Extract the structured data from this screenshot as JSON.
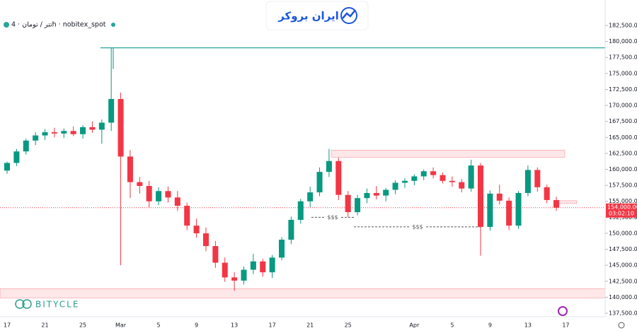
{
  "header": {
    "symbol": "تتر / تومان · 4h · nobitex_spot",
    "brand": "ایران بروکر",
    "watermark": "BITYCLE"
  },
  "chart_data": {
    "type": "candlestick",
    "categories": [
      "17",
      null,
      null,
      null,
      "21",
      null,
      null,
      null,
      "25",
      null,
      null,
      null,
      "Mar",
      null,
      null,
      null,
      "5",
      null,
      null,
      null,
      "9",
      null,
      null,
      null,
      "13",
      null,
      null,
      null,
      "17",
      null,
      null,
      null,
      "21",
      null,
      null,
      null,
      "25",
      null,
      null,
      null,
      null,
      null,
      null,
      "Apr",
      null,
      null,
      null,
      "5",
      null,
      null,
      null,
      "9",
      null,
      null,
      null,
      "13",
      null,
      null,
      null,
      "17"
    ],
    "open": [
      159800,
      161000,
      162800,
      164500,
      165300,
      165800,
      165600,
      166000,
      165500,
      166600,
      166200,
      167300,
      171000,
      162000,
      158000,
      157400,
      155000,
      156600,
      155600,
      154300,
      151200,
      150000,
      148000,
      145400,
      143100,
      142600,
      144300,
      145600,
      143900,
      146200,
      149000,
      152100,
      155000,
      156400,
      159600,
      161300,
      156000,
      153300,
      155500,
      156300,
      155900,
      156800,
      157900,
      158200,
      158900,
      159700,
      159100,
      158200,
      158000,
      157000,
      160600,
      151000,
      156200,
      155100,
      151200,
      156300,
      159900,
      157200,
      155200,
      null
    ],
    "high": [
      161200,
      163200,
      164800,
      165800,
      166300,
      166500,
      166400,
      166700,
      166900,
      167500,
      167800,
      179000,
      172000,
      163000,
      158800,
      158200,
      157200,
      157300,
      156600,
      154800,
      152300,
      150900,
      148800,
      146200,
      143900,
      144800,
      146800,
      146000,
      146600,
      149400,
      152600,
      155400,
      157300,
      160300,
      163200,
      161800,
      156600,
      156000,
      157000,
      157400,
      157100,
      158300,
      158600,
      159200,
      160000,
      160300,
      159500,
      158900,
      158500,
      161500,
      161000,
      156700,
      157600,
      155600,
      156600,
      160600,
      160300,
      157600,
      155700,
      null
    ],
    "low": [
      159300,
      160500,
      162300,
      163800,
      164600,
      165000,
      164900,
      165200,
      164800,
      165700,
      164000,
      166000,
      145000,
      155500,
      156200,
      154000,
      154400,
      154800,
      153500,
      150500,
      149300,
      147200,
      144600,
      142400,
      141000,
      142000,
      143600,
      143200,
      143000,
      145800,
      148300,
      151500,
      154100,
      155800,
      158800,
      155200,
      152500,
      152800,
      154700,
      155300,
      155000,
      156100,
      157100,
      157500,
      158300,
      158600,
      157800,
      157300,
      156400,
      156500,
      146500,
      150400,
      154500,
      150500,
      150700,
      155800,
      156500,
      154700,
      153500,
      null
    ],
    "close": [
      161000,
      162800,
      164500,
      165300,
      165800,
      165600,
      166000,
      165500,
      166600,
      166200,
      167300,
      171000,
      162000,
      158000,
      157400,
      155000,
      156600,
      155600,
      154300,
      151200,
      150000,
      148000,
      145400,
      143100,
      142600,
      144300,
      145600,
      143900,
      146200,
      149000,
      152100,
      155000,
      156400,
      159600,
      161300,
      156000,
      153300,
      155500,
      156300,
      155900,
      156800,
      157900,
      158200,
      158900,
      159700,
      159100,
      158200,
      158000,
      157000,
      160600,
      151000,
      156200,
      155100,
      151200,
      156300,
      159900,
      157200,
      155200,
      154000,
      null
    ],
    "up_color": "#089981",
    "down_color": "#f23645",
    "ylim": [
      136950,
      186480
    ],
    "yticks": [
      {
        "value": 137500,
        "label": "137,500.00"
      },
      {
        "value": 140000,
        "label": "140,000.00"
      },
      {
        "value": 142500,
        "label": "142,500.00"
      },
      {
        "value": 145000,
        "label": "145,000.00"
      },
      {
        "value": 147500,
        "label": "147,500.00"
      },
      {
        "value": 150000,
        "label": "150,000.00"
      },
      {
        "value": 152500,
        "label": "152,500.00"
      },
      {
        "value": 155000,
        "label": "155,000.00"
      },
      {
        "value": 157500,
        "label": "157,500.00"
      },
      {
        "value": 160000,
        "label": "160,000.00"
      },
      {
        "value": 162500,
        "label": "162,500.00"
      },
      {
        "value": 165000,
        "label": "165,000.00"
      },
      {
        "value": 167500,
        "label": "167,500.00"
      },
      {
        "value": 170000,
        "label": "170,000.00"
      },
      {
        "value": 172500,
        "label": "172,500.00"
      },
      {
        "value": 175000,
        "label": "175,000.00"
      },
      {
        "value": 177500,
        "label": "177,500.00"
      },
      {
        "value": 180000,
        "label": "180,000.00"
      },
      {
        "value": 182500,
        "label": "182,500.00"
      }
    ],
    "last_price": {
      "value": 154000,
      "label": "154,000.00",
      "countdown": "03:02:10",
      "color": "#f23645"
    },
    "level": {
      "value": 179000,
      "color": "#26a69a"
    },
    "zones": [
      {
        "from": 161900,
        "to": 163000
      },
      {
        "from": 139900,
        "to": 141350
      },
      {
        "from": 154650,
        "to": 155100
      }
    ],
    "annotations": [
      {
        "text": "$$$",
        "value": 152500
      },
      {
        "text": "$$$",
        "value": 151000
      }
    ]
  }
}
